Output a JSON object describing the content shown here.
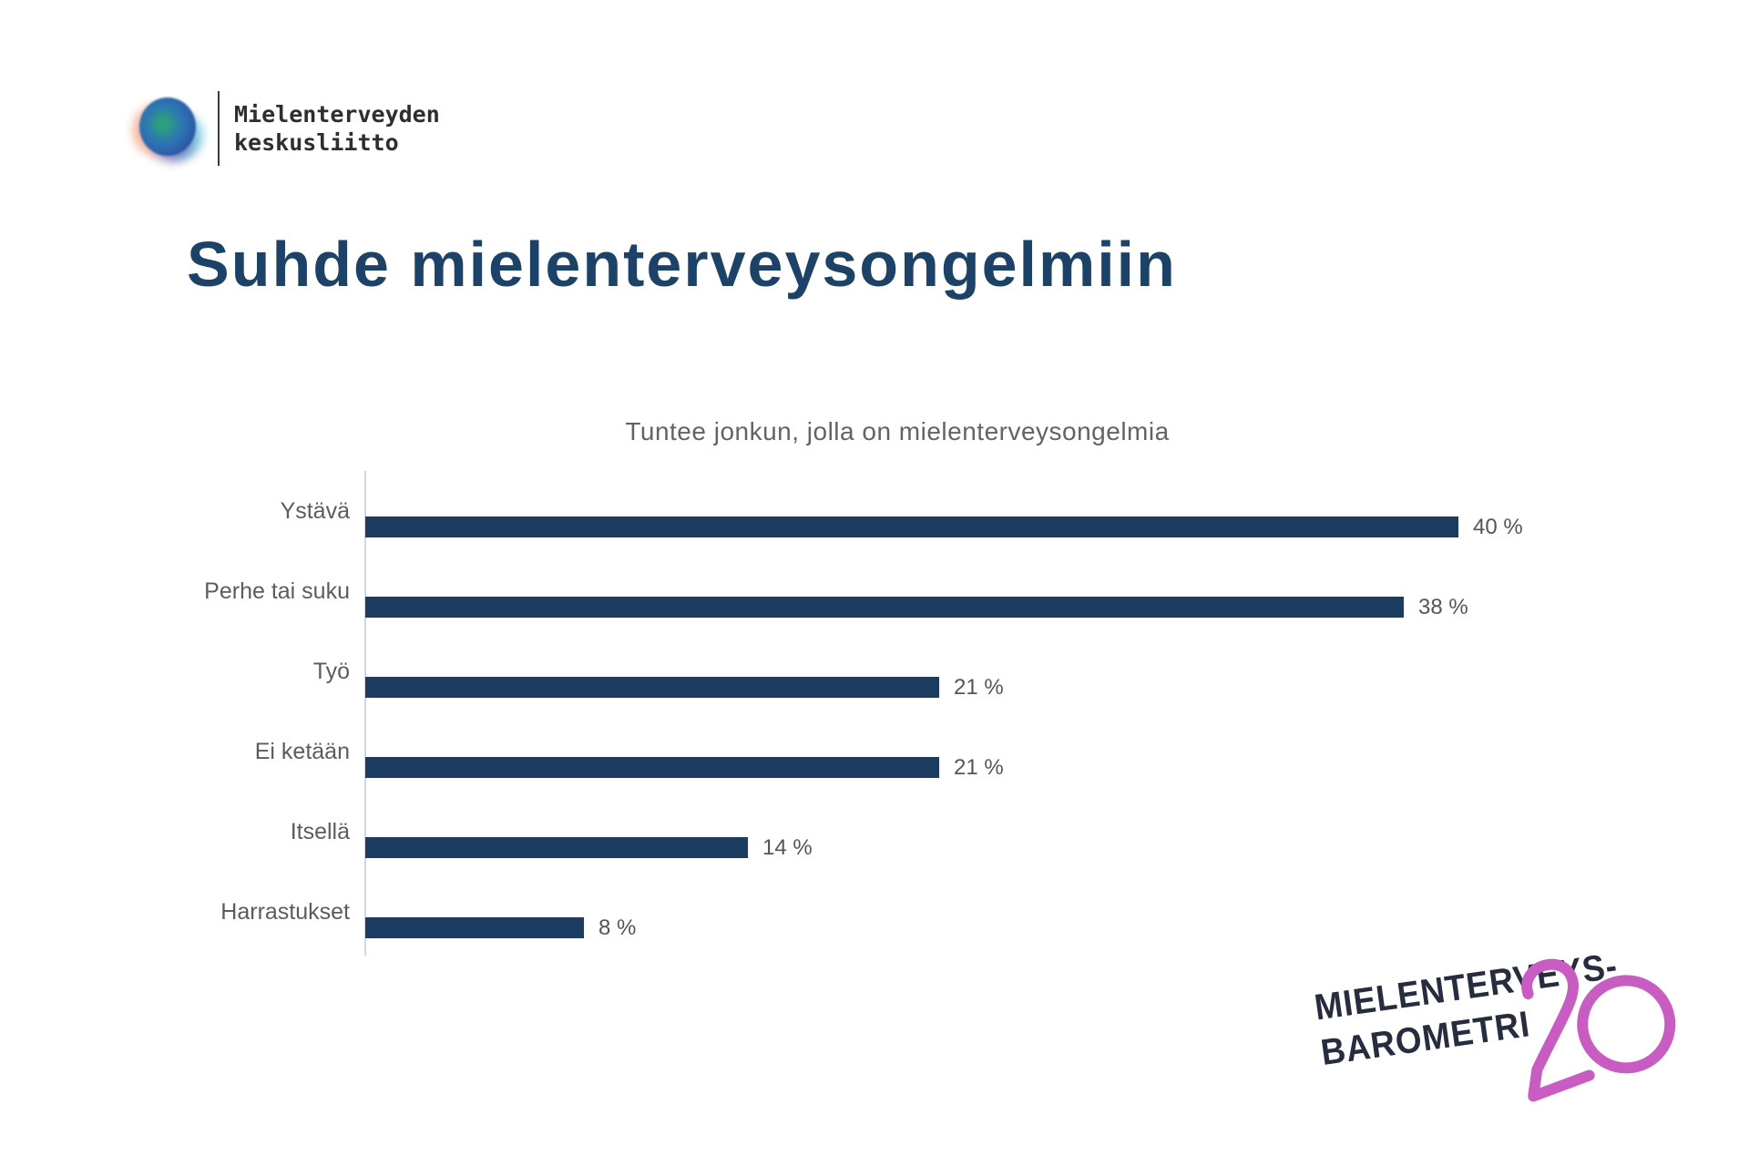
{
  "brand": {
    "name_line1": "Mielenterveyden",
    "name_line2": "keskusliitto"
  },
  "page_title": "Suhde mielenterveysongelmiin",
  "chart_data": {
    "type": "bar",
    "orientation": "horizontal",
    "title": "Tuntee jonkun, jolla on mielenterveysongelmia",
    "categories": [
      "Ystävä",
      "Perhe tai suku",
      "Työ",
      "Ei ketään",
      "Itsellä",
      "Harrastukset"
    ],
    "values": [
      40,
      38,
      21,
      21,
      14,
      8
    ],
    "value_labels": [
      "40 %",
      "38 %",
      "21 %",
      "21 %",
      "14 %",
      "8 %"
    ],
    "xlim": [
      0,
      42
    ],
    "grid": false,
    "legend": false,
    "bar_color": "#1B3C60",
    "label_color": "#5C5C5C",
    "axis_color": "#D6D6D6"
  },
  "footer_logo": {
    "line1": "MIELENTERVEYS-",
    "line2": "BAROMETRI",
    "number": "20",
    "text_color": "#272C3F",
    "number_color": "#C85CC3"
  },
  "colors": {
    "title_navy": "#1D4268",
    "bar_navy": "#1B3C60",
    "accent_pink": "#C85CC3",
    "background": "#FFFFFF"
  }
}
